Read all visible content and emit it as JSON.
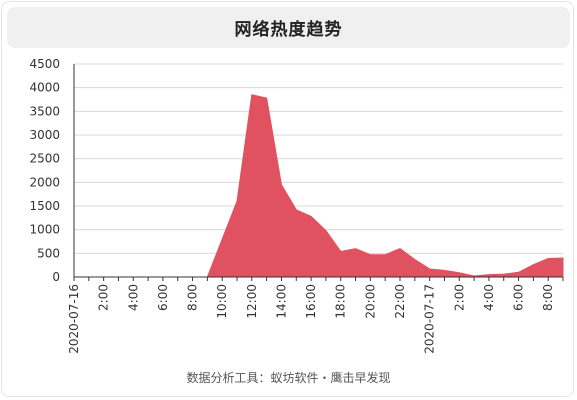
{
  "title": "网络热度趋势",
  "footer": "数据分析工具：蚁坊软件・鹰击早发现",
  "colors": {
    "area": "#e05260",
    "grid": "#d8d8d8",
    "axis": "#333333",
    "title_bg": "#f0f0f0"
  },
  "chart_data": {
    "type": "area",
    "title": "网络热度趋势",
    "xlabel": "",
    "ylabel": "",
    "ylim": [
      0,
      4500
    ],
    "yticks": [
      0,
      500,
      1000,
      1500,
      2000,
      2500,
      3000,
      3500,
      4000,
      4500
    ],
    "grid": true,
    "x": [
      "2020-07-16 00:00",
      "01:00",
      "2:00",
      "03:00",
      "4:00",
      "05:00",
      "6:00",
      "07:00",
      "8:00",
      "09:00",
      "10:00",
      "11:00",
      "12:00",
      "13:00",
      "14:00",
      "15:00",
      "16:00",
      "17:00",
      "18:00",
      "19:00",
      "20:00",
      "21:00",
      "22:00",
      "23:00",
      "2020-07-17 00:00",
      "01:00",
      "2:00",
      "03:00",
      "4:00",
      "05:00",
      "6:00",
      "07:00",
      "8:00",
      "09:00"
    ],
    "tick_labels": [
      "2020-07-16",
      "2:00",
      "4:00",
      "6:00",
      "8:00",
      "10:00",
      "12:00",
      "14:00",
      "16:00",
      "18:00",
      "20:00",
      "22:00",
      "2020-07-17",
      "2:00",
      "4:00",
      "6:00",
      "8:00"
    ],
    "series": [
      {
        "values": [
          0,
          0,
          0,
          0,
          0,
          0,
          0,
          0,
          0,
          0,
          800,
          1600,
          3850,
          3780,
          1950,
          1420,
          1280,
          980,
          540,
          600,
          470,
          470,
          600,
          370,
          170,
          140,
          90,
          20,
          50,
          60,
          100,
          260,
          390,
          400
        ]
      }
    ]
  }
}
